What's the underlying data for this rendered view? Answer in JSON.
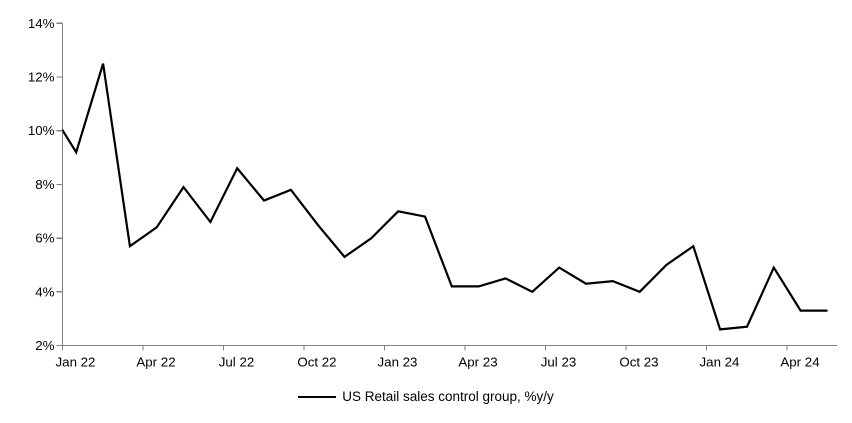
{
  "chart": {
    "background_color": "#ffffff",
    "axis_color": "#808080",
    "text_color": "#000000"
  },
  "chart_data": {
    "type": "line",
    "title": "",
    "xlabel": "",
    "ylabel": "",
    "grid": false,
    "legend_position": "bottom-center",
    "first_point_partially_clipped_at_left_axis": true,
    "x": [
      "Dec 21",
      "Jan 22",
      "Feb 22",
      "Mar 22",
      "Apr 22",
      "May 22",
      "Jun 22",
      "Jul 22",
      "Aug 22",
      "Sep 22",
      "Oct 22",
      "Nov 22",
      "Dec 22",
      "Jan 23",
      "Feb 23",
      "Mar 23",
      "Apr 23",
      "May 23",
      "Jun 23",
      "Jul 23",
      "Aug 23",
      "Sep 23",
      "Oct 23",
      "Nov 23",
      "Dec 23",
      "Jan 24",
      "Feb 24",
      "Mar 24",
      "Apr 24",
      "May 24"
    ],
    "series": [
      {
        "name": "US Retail sales control group, %y/y",
        "color": "#000000",
        "values": [
          10.8,
          9.2,
          12.5,
          5.7,
          6.4,
          7.9,
          6.6,
          8.6,
          7.4,
          7.8,
          6.5,
          5.3,
          6.0,
          7.0,
          6.8,
          4.2,
          4.2,
          4.5,
          4.0,
          4.9,
          4.3,
          4.4,
          4.0,
          5.0,
          5.7,
          2.6,
          2.7,
          4.9,
          3.3,
          3.3
        ]
      }
    ],
    "x_axis": {
      "tick_labels": [
        "Jan 22",
        "Apr 22",
        "Jul 22",
        "Oct 22",
        "Jan 24",
        "Apr 24"
      ],
      "tick_labels_full": [
        "Jan 22",
        "Apr 22",
        "Jul 22",
        "Oct 22",
        "Jan 23",
        "Apr 23",
        "Jul 23",
        "Oct 23",
        "Jan 24",
        "Apr 24"
      ]
    },
    "y_axis": {
      "tick_labels": [
        "2%",
        "4%",
        "6%",
        "8%",
        "10%",
        "12%",
        "14%"
      ],
      "min": 2,
      "max": 14,
      "unit": "%"
    }
  }
}
